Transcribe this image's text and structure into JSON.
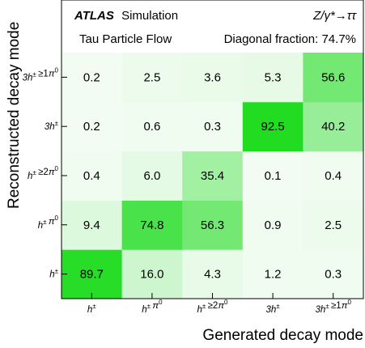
{
  "chart_data": {
    "type": "heatmap",
    "experiment": "ATLAS",
    "status": "Simulation",
    "process": "Z/γ*→ττ",
    "algorithm": "Tau Particle Flow",
    "diagonal_fraction_text": "Diagonal fraction: 74.7%",
    "xlabel": "Generated decay mode",
    "ylabel": "Reconstructed decay mode",
    "x_categories": [
      "h±",
      "h± π0",
      "h± ≥2π0",
      "3h±",
      "3h± ≥1π0"
    ],
    "y_categories": [
      "h±",
      "h± π0",
      "h± ≥2π0",
      "3h±",
      "3h± ≥1π0"
    ],
    "values": [
      [
        89.7,
        16.0,
        4.3,
        1.2,
        0.3
      ],
      [
        9.4,
        74.8,
        56.3,
        0.9,
        2.5
      ],
      [
        0.4,
        6.0,
        35.4,
        0.1,
        0.4
      ],
      [
        0.2,
        0.6,
        0.3,
        92.5,
        40.2
      ],
      [
        0.2,
        2.5,
        3.6,
        5.3,
        56.6
      ]
    ],
    "value_unit": "%",
    "color_scale": {
      "low": "#f2fcf2",
      "high": "#22dc22"
    }
  }
}
